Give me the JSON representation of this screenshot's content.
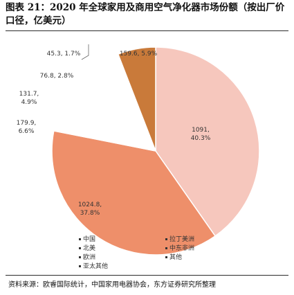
{
  "header": {
    "title": "图表 21：2020 年全球家用及商用空气净化器市场份额（按出厂价口径，亿美元）"
  },
  "footer": {
    "source": "资料来源：欧睿国际统计，中国家用电器协会，东方证券研究所整理"
  },
  "chart_data": {
    "type": "pie",
    "title": "图表 21：2020 年全球家用及商用空气净化器市场份额（按出厂价口径，亿美元）",
    "slices": [
      {
        "name": "中国",
        "value": 1091,
        "percent": "40.3%",
        "color": "#f6c7bd",
        "value_label": "1091,",
        "percent_label": "40.3%"
      },
      {
        "name": "北美",
        "value": 1024.8,
        "percent": "37.8%",
        "color": "#ee8f6a",
        "value_label": "1024.8,",
        "percent_label": "37.8%"
      },
      {
        "name": "欧洲",
        "value": 179.9,
        "percent": "6.6%",
        "color": "#ffffff",
        "value_label": "179.9,",
        "percent_label": "6.6%"
      },
      {
        "name": "亚太其他",
        "value": 131.7,
        "percent": "4.9%",
        "color": "#ffffff",
        "value_label": "131.7,",
        "percent_label": "4.9%"
      },
      {
        "name": "拉丁美洲",
        "value": 76.8,
        "percent": "2.8%",
        "color": "#ffffff",
        "value_label": "76.8,",
        "percent_label": "2.8%"
      },
      {
        "name": "中东非洲",
        "value": 45.3,
        "percent": "1.7%",
        "color": "#ffffff",
        "value_label": "45.3,",
        "percent_label": "1.7%"
      },
      {
        "name": "其他",
        "value": 159.6,
        "percent": "5.9%",
        "color": "#c97a3a",
        "value_label": "159.6,",
        "percent_label": "5.9%"
      }
    ],
    "legend": [
      "中国",
      "北美",
      "欧洲",
      "亚太其他",
      "拉丁美洲",
      "中东非洲",
      "其他"
    ],
    "legend_position": "bottom"
  }
}
